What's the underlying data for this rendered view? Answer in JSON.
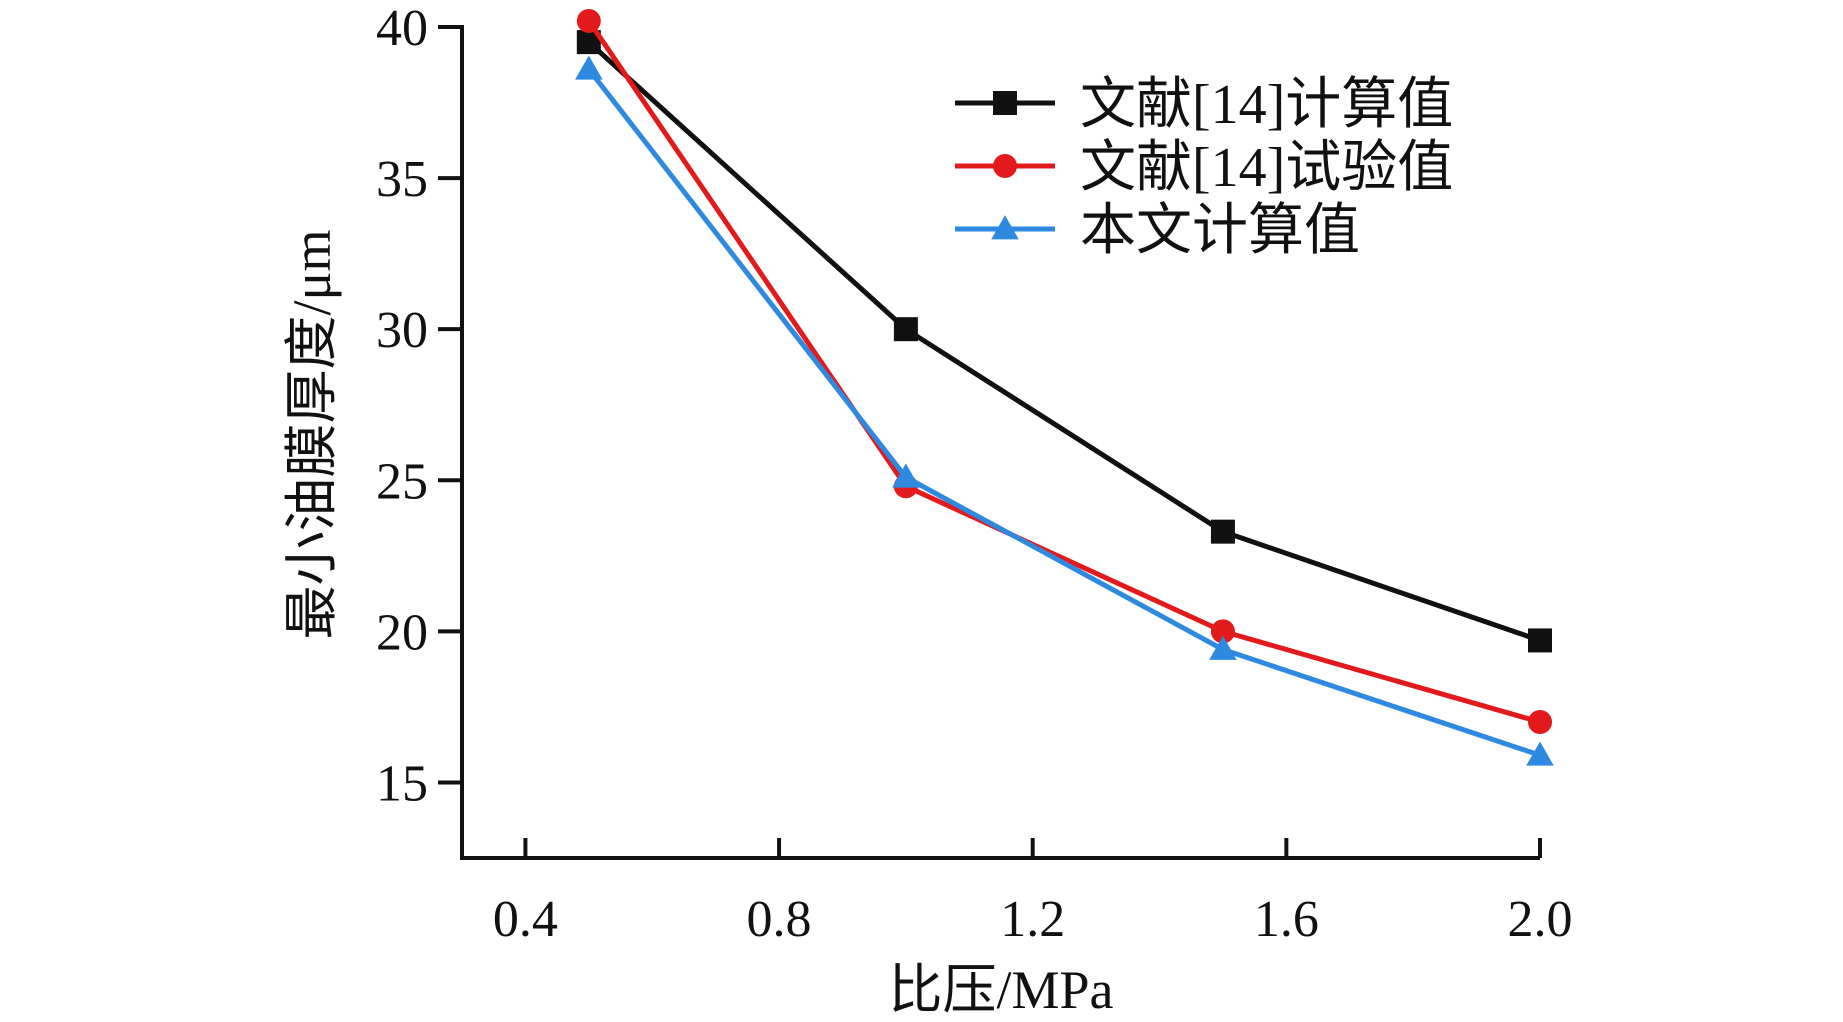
{
  "chart_data": {
    "type": "line",
    "xlabel": "比压/MPa",
    "ylabel": "最小油膜厚度/μm",
    "xlim": [
      0.3,
      2.0
    ],
    "ylim": [
      12.5,
      40
    ],
    "x_ticks": [
      0.4,
      0.8,
      1.2,
      1.6,
      2.0
    ],
    "x_tick_labels": [
      "0.4",
      "0.8",
      "1.2",
      "1.6",
      "2.0"
    ],
    "y_ticks": [
      15,
      20,
      25,
      30,
      35,
      40
    ],
    "y_tick_labels": [
      "15",
      "20",
      "25",
      "30",
      "35",
      "40"
    ],
    "grid": false,
    "legend_position": "top-right",
    "series": [
      {
        "name": "文献[14]计算值",
        "color": "#111111",
        "marker": "square",
        "x": [
          0.5,
          1.0,
          1.5,
          2.0
        ],
        "y": [
          39.5,
          30.0,
          23.3,
          19.7
        ]
      },
      {
        "name": "文献[14]试验值",
        "color": "#e31a1c",
        "marker": "circle",
        "x": [
          0.5,
          1.0,
          1.5,
          2.0
        ],
        "y": [
          40.2,
          24.8,
          20.0,
          17.0
        ]
      },
      {
        "name": "本文计算值",
        "color": "#2e8ae0",
        "marker": "triangle",
        "x": [
          0.5,
          1.0,
          1.5,
          2.0
        ],
        "y": [
          38.6,
          25.1,
          19.4,
          15.9
        ]
      }
    ]
  }
}
